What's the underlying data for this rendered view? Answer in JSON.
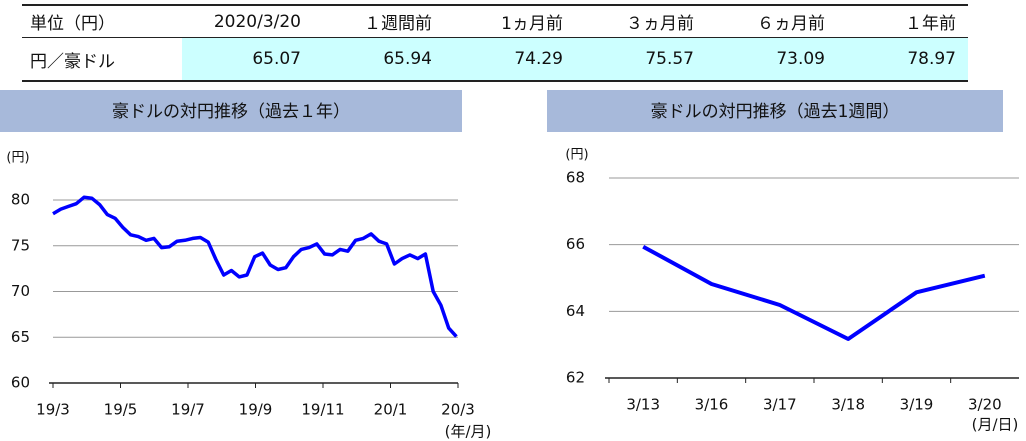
{
  "table": {
    "header": [
      "単位（円）",
      "2020/3/20",
      "１週間前",
      "1ヵ月前",
      "３ヵ月前",
      "６ヵ月前",
      "１年前"
    ],
    "rows": [
      [
        "円／豪ドル",
        "65.07",
        "65.94",
        "74.29",
        "75.57",
        "73.09",
        "78.97"
      ]
    ]
  },
  "chart_data": [
    {
      "type": "line",
      "title": "豪ドルの対円推移（過去１年）",
      "ylabel": "(円)",
      "xlabel": "(年/月)",
      "color": "#0000ff",
      "values": [
        78.5,
        79.0,
        79.3,
        79.6,
        80.3,
        80.2,
        79.5,
        78.4,
        78.0,
        77.0,
        76.2,
        76.0,
        75.6,
        75.8,
        74.8,
        74.9,
        75.5,
        75.6,
        75.8,
        75.9,
        75.4,
        73.5,
        71.8,
        72.3,
        71.6,
        71.8,
        73.8,
        74.2,
        72.9,
        72.4,
        72.6,
        73.8,
        74.6,
        74.8,
        75.2,
        74.1,
        74.0,
        74.6,
        74.4,
        75.6,
        75.8,
        76.3,
        75.5,
        75.2,
        73.0,
        73.6,
        74.0,
        73.6,
        74.1,
        70.0,
        68.5,
        66.0,
        65.07
      ],
      "xlim": [
        0,
        52.2
      ],
      "xticks": [
        {
          "value": 0,
          "label": "19/3"
        },
        {
          "value": 8.7,
          "label": "19/5"
        },
        {
          "value": 17.4,
          "label": "19/7"
        },
        {
          "value": 26.1,
          "label": "19/9"
        },
        {
          "value": 34.8,
          "label": "19/11"
        },
        {
          "value": 43.5,
          "label": "20/1"
        },
        {
          "value": 52.2,
          "label": "20/3"
        }
      ],
      "ylim": [
        60,
        82
      ],
      "yticks": [
        60,
        65,
        70,
        75,
        80
      ],
      "grid": true
    },
    {
      "type": "line",
      "title": "豪ドルの対円推移（過去1週間）",
      "ylabel": "(円)",
      "xlabel": "(月/日)",
      "color": "#0000ff",
      "categories": [
        "3/13",
        "3/16",
        "3/17",
        "3/18",
        "3/19",
        "3/20"
      ],
      "values": [
        65.94,
        64.82,
        64.19,
        63.17,
        64.57,
        65.07
      ],
      "ylim": [
        62,
        68
      ],
      "yticks": [
        62,
        64,
        66,
        68
      ],
      "grid": true
    }
  ]
}
